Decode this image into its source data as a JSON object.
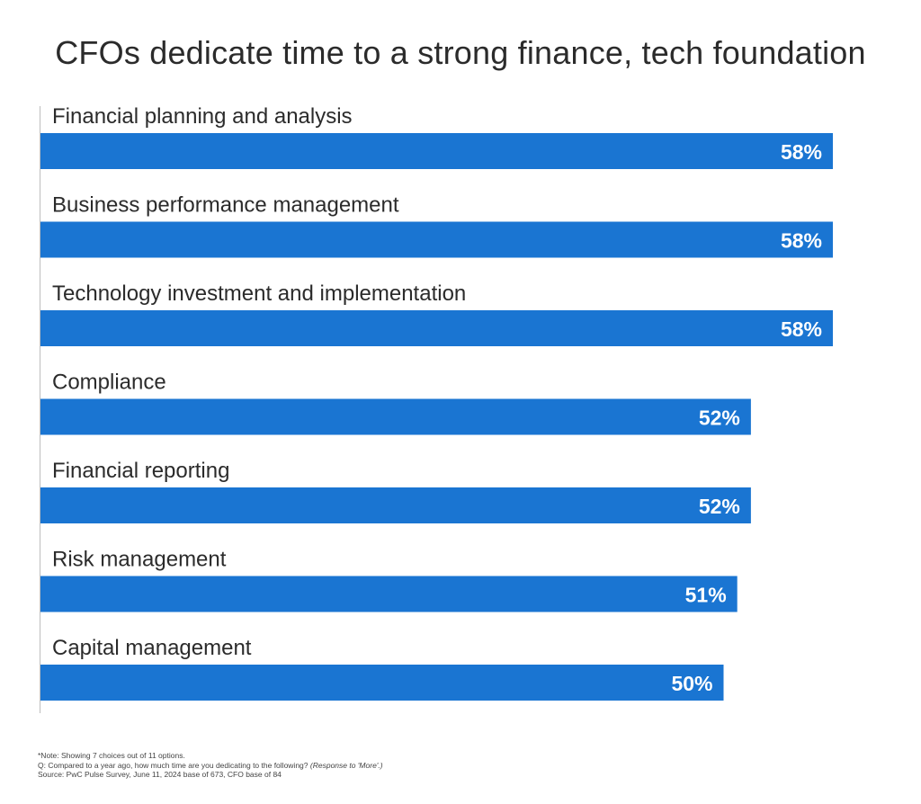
{
  "chart_data": {
    "type": "bar",
    "orientation": "horizontal",
    "title": "CFOs dedicate time to a strong finance, tech foundation",
    "categories": [
      "Financial planning and analysis",
      "Business performance management",
      "Technology investment and implementation",
      "Compliance",
      "Financial reporting",
      "Risk management",
      "Capital management"
    ],
    "values": [
      58,
      58,
      58,
      52,
      52,
      51,
      50
    ],
    "value_labels": [
      "58%",
      "58%",
      "58%",
      "52%",
      "52%",
      "51%",
      "50%"
    ],
    "unit": "%",
    "xlim": [
      0,
      100
    ],
    "bar_color": "#1a75d2",
    "xlabel": "",
    "ylabel": ""
  },
  "notes": {
    "note": "*Note: Showing 7 choices out of 11 options.",
    "question": "Q: Compared to a year ago, how much time are you dedicating to the following?",
    "question_suffix": "(Response to 'More'.)",
    "source": "Source: PwC Pulse Survey, June 11, 2024 base of 673, CFO base of 84"
  }
}
